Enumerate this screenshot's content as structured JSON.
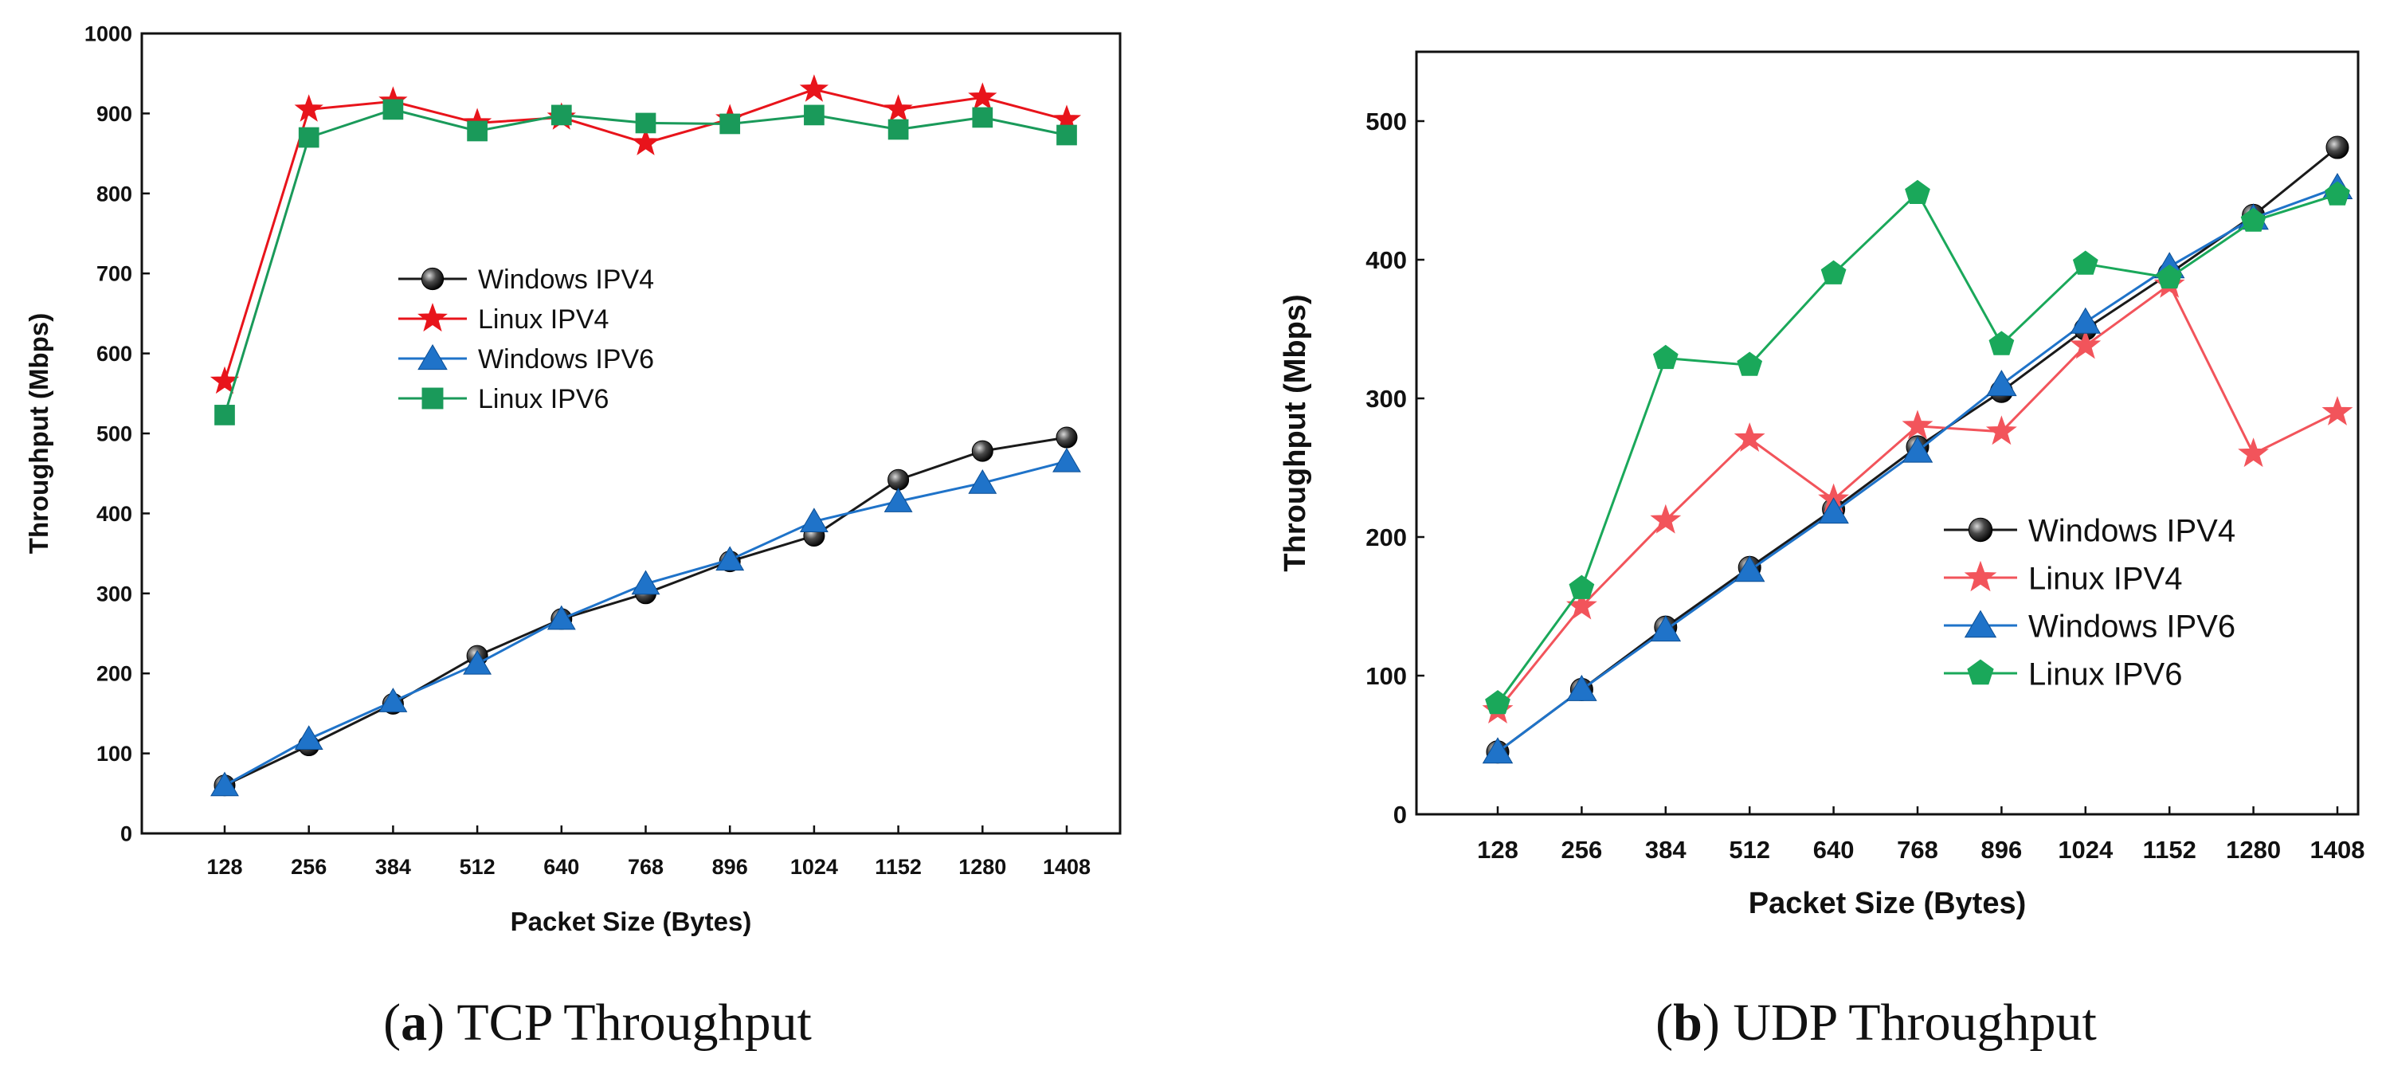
{
  "chart_data": [
    {
      "type": "line",
      "caption_letter": "a",
      "caption_text": "TCP Throughput",
      "xlabel": "Packet Size (Bytes)",
      "ylabel": "Throughput (Mbps)",
      "categories": [
        "128",
        "256",
        "384",
        "512",
        "640",
        "768",
        "896",
        "1024",
        "1152",
        "1280",
        "1408"
      ],
      "ylim": [
        0,
        1000
      ],
      "yticks": [
        0,
        100,
        200,
        300,
        400,
        500,
        600,
        700,
        800,
        900,
        1000
      ],
      "grid": false,
      "legend_position": "center",
      "series": [
        {
          "name": "Windows IPV4",
          "color": "#1a1a1a",
          "marker": "sphere",
          "values": [
            60,
            110,
            162,
            222,
            268,
            300,
            340,
            372,
            442,
            478,
            495
          ]
        },
        {
          "name": "Linux IPV4",
          "color": "#e8141b",
          "marker": "star",
          "values": [
            565,
            905,
            915,
            888,
            895,
            863,
            893,
            930,
            905,
            920,
            892
          ]
        },
        {
          "name": "Windows IPV6",
          "color": "#1f73c9",
          "marker": "triangle",
          "values": [
            60,
            118,
            165,
            212,
            268,
            312,
            342,
            390,
            415,
            438,
            465
          ]
        },
        {
          "name": "Linux IPV6",
          "color": "#1a9a5a",
          "marker": "square",
          "values": [
            523,
            870,
            905,
            878,
            898,
            888,
            887,
            898,
            880,
            895,
            873
          ]
        }
      ]
    },
    {
      "type": "line",
      "caption_letter": "b",
      "caption_text": "UDP Throughput",
      "xlabel": "Packet Size (Bytes)",
      "ylabel": "Throughput (Mbps)",
      "categories": [
        "128",
        "256",
        "384",
        "512",
        "640",
        "768",
        "896",
        "1024",
        "1152",
        "1280",
        "1408"
      ],
      "ylim": [
        0,
        550
      ],
      "yticks": [
        0,
        100,
        200,
        300,
        400,
        500
      ],
      "grid": false,
      "legend_position": "bottom-right",
      "series": [
        {
          "name": "Windows IPV4",
          "color": "#1a1a1a",
          "marker": "sphere",
          "values": [
            45,
            90,
            135,
            178,
            220,
            265,
            305,
            350,
            390,
            432,
            481
          ]
        },
        {
          "name": "Linux IPV4",
          "color": "#f2545b",
          "marker": "star",
          "values": [
            75,
            150,
            212,
            271,
            227,
            280,
            276,
            338,
            382,
            260,
            290
          ]
        },
        {
          "name": "Windows IPV6",
          "color": "#1f73c9",
          "marker": "triangle",
          "values": [
            45,
            90,
            133,
            176,
            218,
            262,
            310,
            355,
            395,
            430,
            452
          ]
        },
        {
          "name": "Linux IPV6",
          "color": "#1aa85a",
          "marker": "pentagon",
          "values": [
            80,
            163,
            329,
            324,
            390,
            448,
            339,
            397,
            387,
            428,
            447
          ]
        }
      ]
    }
  ]
}
